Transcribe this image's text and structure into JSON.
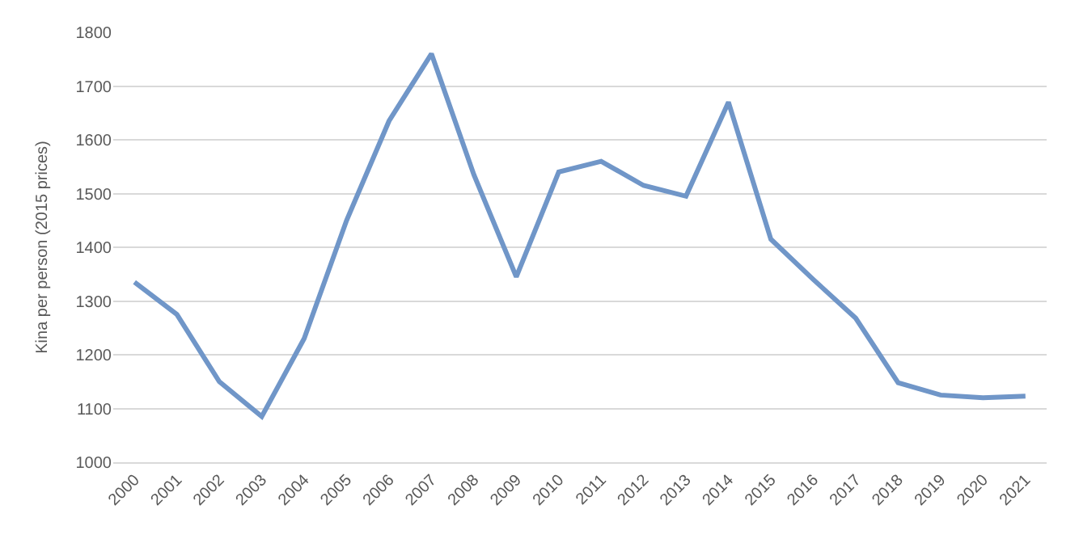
{
  "chart_data": {
    "type": "line",
    "ylabel": "Kina per person (2015 prices)",
    "categories": [
      "2000",
      "2001",
      "2002",
      "2003",
      "2004",
      "2005",
      "2006",
      "2007",
      "2008",
      "2009",
      "2010",
      "2011",
      "2012",
      "2013",
      "2014",
      "2015",
      "2016",
      "2017",
      "2018",
      "2019",
      "2020",
      "2021"
    ],
    "series": [
      {
        "color": "#7096c8",
        "values": [
          1335,
          1275,
          1150,
          1085,
          1230,
          1450,
          1635,
          1760,
          1535,
          1345,
          1540,
          1560,
          1515,
          1495,
          1670,
          1415,
          1340,
          1268,
          1148,
          1125,
          1120,
          1123
        ]
      }
    ],
    "ylim": [
      1000,
      1800
    ],
    "yticks": [
      1000,
      1100,
      1200,
      1300,
      1400,
      1500,
      1600,
      1700,
      1800
    ],
    "grid": "y",
    "legend": false,
    "marker": "none",
    "line_style": "solid"
  }
}
